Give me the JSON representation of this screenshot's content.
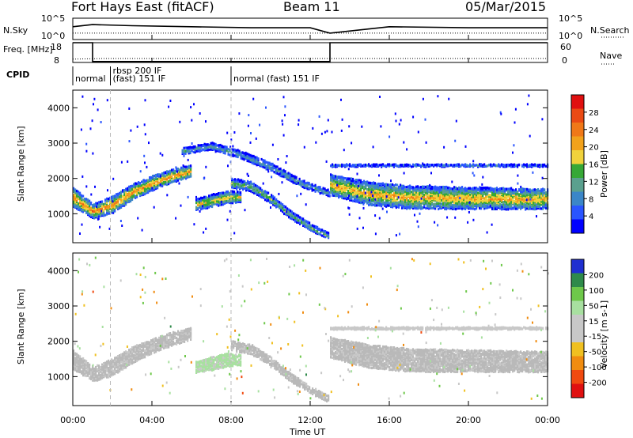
{
  "header": {
    "station": "Fort Hays East (fitACF)",
    "beam": "Beam 11",
    "date": "05/Mar/2015"
  },
  "colors": {
    "power_scale": [
      "#0000ff",
      "#2a55ff",
      "#3b86c8",
      "#5aa08e",
      "#36a836",
      "#f0d23c",
      "#f2a21c",
      "#f07818",
      "#ea4a14",
      "#e01010"
    ],
    "velocity_scale": [
      "#1f2fd0",
      "#2e8a4a",
      "#6ec84a",
      "#a8e0a0",
      "#c8c8c8",
      "#c8c8c8",
      "#f0c020",
      "#f08c10",
      "#f04a10",
      "#e01010"
    ],
    "ground_scatter": "#b9b9b9"
  },
  "chart_data": [
    {
      "type": "line",
      "name": "noise",
      "x_range": [
        0,
        24
      ],
      "left_axis": {
        "label": "N.Sky",
        "ticks": [
          "10^5",
          "10^0"
        ]
      },
      "right_axis": {
        "label": "N.Search",
        "ticks": [
          "10^5",
          "10^0"
        ]
      },
      "series": [
        {
          "name": "N.Sky",
          "style": "solid",
          "x": [
            0,
            1,
            3,
            6,
            9,
            12,
            13,
            16,
            20,
            24
          ],
          "values": [
            0.6,
            0.7,
            0.65,
            0.6,
            0.55,
            0.55,
            0.3,
            0.6,
            0.55,
            0.55
          ]
        },
        {
          "name": "N.Search",
          "style": "dotted",
          "x": [
            0,
            6,
            13,
            24
          ],
          "values": [
            0.3,
            0.3,
            0.3,
            0.3
          ]
        }
      ]
    },
    {
      "type": "line",
      "name": "frequency",
      "x_range": [
        0,
        24
      ],
      "left_axis": {
        "label": "Freq. [MHz]",
        "ticks": [
          18,
          8
        ],
        "ylim": [
          8,
          18
        ]
      },
      "right_axis": {
        "label": "Nave",
        "ticks": [
          60,
          0
        ],
        "ylim": [
          0,
          60
        ]
      },
      "series": [
        {
          "name": "Freq.",
          "style": "solid",
          "x": [
            0,
            1.0,
            1.0,
            13.0,
            13.0,
            24
          ],
          "values": [
            18,
            18,
            8.5,
            8.5,
            18,
            18
          ]
        },
        {
          "name": "Nave",
          "style": "dotted",
          "x": [
            0,
            1.5,
            24
          ],
          "values": [
            10,
            12,
            12
          ]
        }
      ]
    },
    {
      "type": "table",
      "name": "cpid",
      "label": "CPID",
      "segments": [
        {
          "start": 0,
          "end": 1.9,
          "text": "normal",
          "row": 2
        },
        {
          "start": 1.9,
          "end": 8.0,
          "text": "rbsp 200 IF",
          "row": 1
        },
        {
          "start": 1.9,
          "end": 8.0,
          "text": "(fast) 151 IF",
          "row": 2
        },
        {
          "start": 8.0,
          "end": 24,
          "text": "normal (fast) 151 IF",
          "row": 2
        }
      ]
    },
    {
      "type": "heatmap",
      "name": "power",
      "ylabel": "Slant Range [km]",
      "colorbar_label": "Power [dB]",
      "colorbar_ticks": [
        4,
        8,
        12,
        16,
        20,
        24,
        28
      ],
      "clim": [
        0,
        30
      ],
      "x_range": [
        0,
        24
      ],
      "ylim": [
        180,
        4500
      ],
      "yticks": [
        1000,
        2000,
        3000,
        4000
      ],
      "bands": [
        {
          "x": [
            0,
            1,
            2,
            3,
            4,
            5,
            6
          ],
          "y_center": [
            1500,
            1100,
            1300,
            1650,
            1900,
            2100,
            2250
          ],
          "width": [
            520,
            380,
            450,
            420,
            380,
            340,
            300
          ],
          "peak": 22
        },
        {
          "x": [
            5.5,
            7,
            8.5,
            10,
            11.5,
            13
          ],
          "y_center": [
            2800,
            2950,
            2700,
            2350,
            1900,
            1600
          ],
          "width": [
            150,
            170,
            180,
            200,
            170,
            150
          ],
          "peak": 10
        },
        {
          "x": [
            6.2,
            7,
            7.8,
            8.5
          ],
          "y_center": [
            1300,
            1400,
            1500,
            1500
          ],
          "width": [
            280,
            340,
            340,
            260
          ],
          "peak": 18
        },
        {
          "x": [
            8,
            9,
            10,
            11,
            12,
            12.9
          ],
          "y_center": [
            1900,
            1800,
            1450,
            1000,
            650,
            400
          ],
          "width": [
            250,
            250,
            220,
            200,
            170,
            150
          ],
          "peak": 14
        },
        {
          "x": [
            13,
            15,
            17,
            19,
            21,
            23,
            24
          ],
          "y_center": [
            1850,
            1600,
            1500,
            1480,
            1470,
            1450,
            1450
          ],
          "width": [
            560,
            620,
            620,
            600,
            580,
            560,
            540
          ],
          "peak": 20
        },
        {
          "x": [
            13,
            18,
            24
          ],
          "y_center": [
            2400,
            2400,
            2400
          ],
          "width": [
            40,
            40,
            40
          ],
          "peak": 8
        }
      ]
    },
    {
      "type": "heatmap",
      "name": "velocity",
      "ylabel": "Slant Range [km]",
      "colorbar_label": "Velocity [m s-1]",
      "colorbar_ticks": [
        200,
        100,
        50,
        15,
        -15,
        -50,
        -100,
        -200
      ],
      "clim": [
        -250,
        250
      ],
      "x_range": [
        0,
        24
      ],
      "ylim": [
        180,
        4500
      ],
      "yticks": [
        1000,
        2000,
        3000,
        4000
      ],
      "bands": [
        {
          "x": [
            0,
            1,
            2,
            3,
            4,
            5,
            6
          ],
          "y_center": [
            1500,
            1100,
            1300,
            1650,
            1900,
            2100,
            2250
          ],
          "width": [
            520,
            380,
            450,
            420,
            380,
            340,
            300
          ],
          "velocity": 0
        },
        {
          "x": [
            6.2,
            7,
            7.8,
            8.5
          ],
          "y_center": [
            1300,
            1400,
            1500,
            1500
          ],
          "width": [
            280,
            340,
            340,
            260
          ],
          "velocity": 60
        },
        {
          "x": [
            8,
            9,
            10,
            11,
            12,
            12.9
          ],
          "y_center": [
            1900,
            1800,
            1450,
            1000,
            650,
            400
          ],
          "width": [
            250,
            250,
            220,
            200,
            170,
            150
          ],
          "velocity": 0
        },
        {
          "x": [
            13,
            15,
            17,
            19,
            21,
            23,
            24
          ],
          "y_center": [
            1850,
            1600,
            1500,
            1480,
            1470,
            1450,
            1450
          ],
          "width": [
            560,
            620,
            620,
            600,
            580,
            560,
            540
          ],
          "velocity": 0
        },
        {
          "x": [
            13,
            18,
            24
          ],
          "y_center": [
            2400,
            2400,
            2400
          ],
          "width": [
            40,
            40,
            40
          ],
          "velocity": 20
        }
      ]
    }
  ],
  "time_axis": {
    "label": "Time UT",
    "ticks": [
      "00:00",
      "04:00",
      "08:00",
      "12:00",
      "16:00",
      "20:00",
      "00:00"
    ],
    "tick_hours": [
      0,
      4,
      8,
      12,
      16,
      20,
      24
    ]
  }
}
